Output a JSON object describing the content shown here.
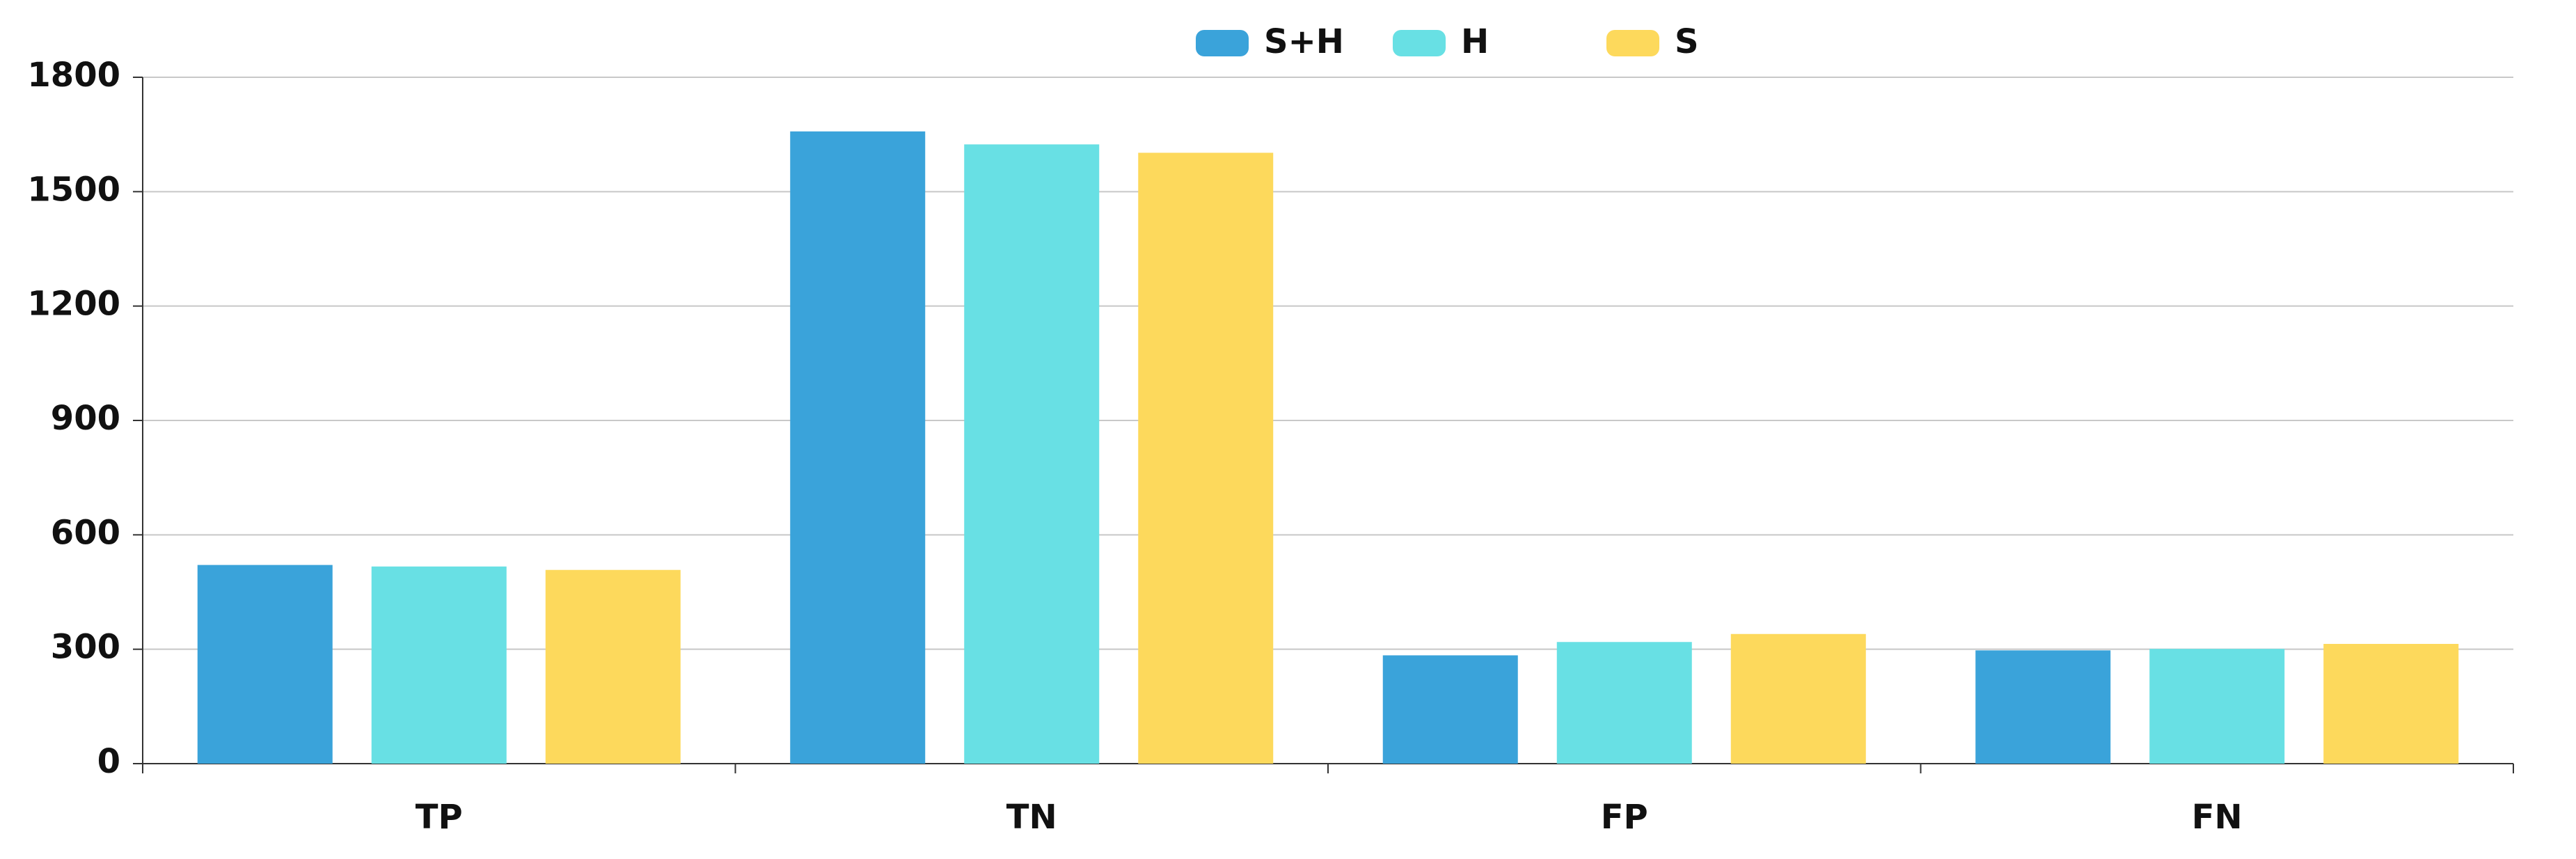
{
  "chart_data": {
    "type": "bar",
    "categories": [
      "TP",
      "TN",
      "FP",
      "FN"
    ],
    "series": [
      {
        "name": "S+H",
        "color": "#3aa3da",
        "values": [
          521,
          1658,
          284,
          297
        ]
      },
      {
        "name": "H",
        "color": "#68e0e4",
        "values": [
          517,
          1624,
          319,
          301
        ]
      },
      {
        "name": "S",
        "color": "#fdd95c",
        "values": [
          508,
          1602,
          340,
          314
        ]
      }
    ],
    "ylim": [
      0,
      1800
    ],
    "yticks": [
      0,
      300,
      600,
      900,
      1200,
      1500,
      1800
    ],
    "grid": true,
    "legend": "top"
  }
}
